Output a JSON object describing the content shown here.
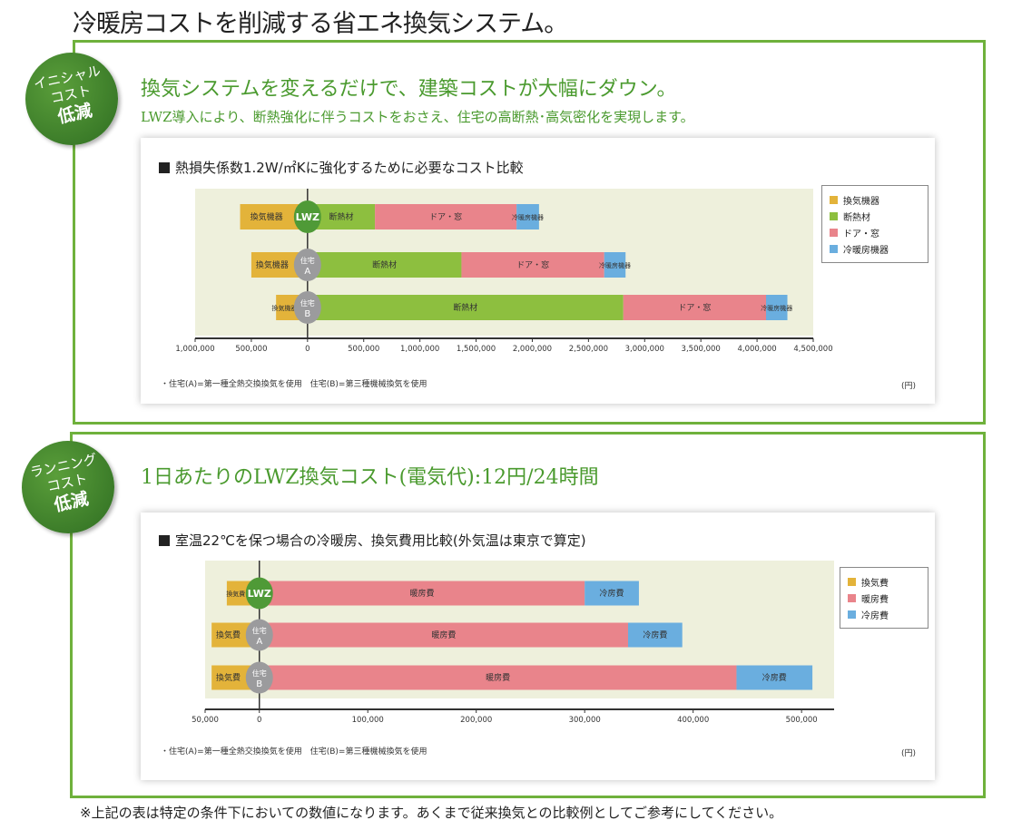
{
  "title": "冷暖房コストを削減する省エネ換気システム。",
  "section1": {
    "badge": [
      "イニシャル",
      "コスト",
      "低減"
    ],
    "headline": "換気システムを変えるだけで、建築コストが大幅にダウン。",
    "subline": "LWZ導入により、断熱強化に伴うコストをおさえ、住宅の高断熱･高気密化を実現します。"
  },
  "section2": {
    "badge": [
      "ランニング",
      "コスト",
      "低減"
    ],
    "headline": "1日あたりのLWZ換気コスト(電気代):12円/24時間"
  },
  "footer": "※上記の表は特定の条件下においての数値になります。あくまで従来換気との比較例としてご参考にしてください。",
  "colors": {
    "yellow": "#e3b33a",
    "green": "#8dbf3f",
    "pink": "#e9848b",
    "blue": "#6aaedf",
    "plot_bg": "#eef0dc",
    "frame": "#6fb13c"
  },
  "chart_data": [
    {
      "type": "bar",
      "orientation": "horizontal",
      "stacked": true,
      "title": "熱損失係数1.2W/㎡Kに強化するために必要なコスト比較",
      "unit": "(円)",
      "note": "・住宅(A)=第一種全熱交換換気を使用　住宅(B)=第三種機械換気を使用",
      "xlim": [
        -1000000,
        4500000
      ],
      "ticks": [
        -1000000,
        -500000,
        0,
        500000,
        1000000,
        1500000,
        2000000,
        2500000,
        3000000,
        3500000,
        4000000,
        4500000
      ],
      "tick_labels": [
        "1,000,000",
        "500,000",
        "0",
        "500,000",
        "1,000,000",
        "1,500,000",
        "2,000,000",
        "2,500,000",
        "3,000,000",
        "3,500,000",
        "4,000,000",
        "4,500,000"
      ],
      "categories": [
        "LWZ",
        "住宅A",
        "住宅B"
      ],
      "category_marks": [
        [
          "LWZ"
        ],
        [
          "住宅",
          "A"
        ],
        [
          "住宅",
          "B"
        ]
      ],
      "legend_position": "right",
      "series": [
        {
          "name": "換気機器",
          "label": "換気機器",
          "color": "#e3b33a",
          "values": [
            -600000,
            -500000,
            -280000
          ]
        },
        {
          "name": "断熱材",
          "label": "断熱材",
          "color": "#8dbf3f",
          "values": [
            600000,
            1370000,
            2810000
          ]
        },
        {
          "name": "ドア・窓",
          "label": "ドア・窓",
          "color": "#e9848b",
          "values": [
            1260000,
            1270000,
            1270000
          ]
        },
        {
          "name": "冷暖房機器",
          "label": "冷暖房機器",
          "color": "#6aaedf",
          "values": [
            200000,
            190000,
            190000
          ]
        }
      ]
    },
    {
      "type": "bar",
      "orientation": "horizontal",
      "stacked": true,
      "title": "室温22℃を保つ場合の冷暖房、換気費用比較(外気温は東京で算定)",
      "unit": "(円)",
      "note": "・住宅(A)=第一種全熱交換換気を使用　住宅(B)=第三種機械換気を使用",
      "xlim": [
        -50000,
        530000
      ],
      "ticks": [
        -50000,
        0,
        100000,
        200000,
        300000,
        400000,
        500000
      ],
      "tick_labels": [
        "50,000",
        "0",
        "100,000",
        "200,000",
        "300,000",
        "400,000",
        "500,000"
      ],
      "categories": [
        "LWZ",
        "住宅A",
        "住宅B"
      ],
      "category_marks": [
        [
          "LWZ"
        ],
        [
          "住宅",
          "A"
        ],
        [
          "住宅",
          "B"
        ]
      ],
      "legend_position": "right",
      "series": [
        {
          "name": "換気費",
          "label": "換気費",
          "color": "#e3b33a",
          "values": [
            -30000,
            -44000,
            -44000
          ]
        },
        {
          "name": "暖房費",
          "label": "暖房費",
          "color": "#e9848b",
          "values": [
            300000,
            340000,
            440000
          ]
        },
        {
          "name": "冷房費",
          "label": "冷房費",
          "color": "#6aaedf",
          "values": [
            50000,
            50000,
            70000
          ]
        }
      ]
    }
  ]
}
